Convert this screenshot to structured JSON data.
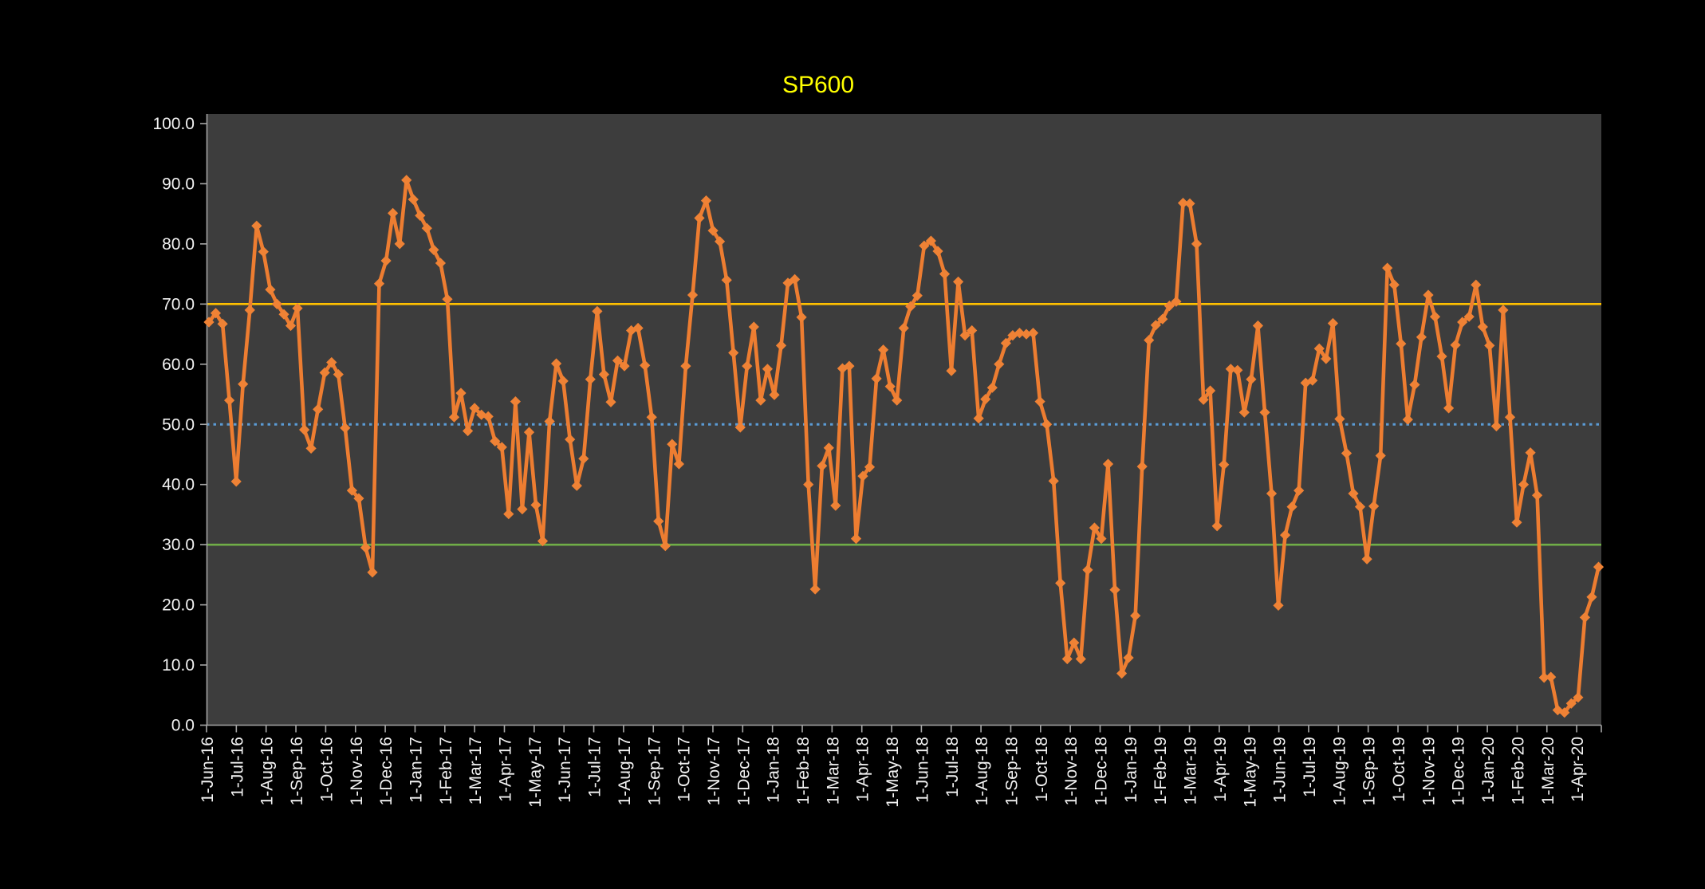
{
  "title": {
    "text": "SP600",
    "color": "#FFFF00"
  },
  "colors": {
    "page_background": "#000000",
    "plot_background": "#3D3D3D",
    "series_line": "#ED7D31",
    "marker_fill": "#EF8235",
    "axis_line": "#A6A6A6",
    "tick_mark": "#A6A6A6",
    "axis_text": "#F2F2F2",
    "ref_upper": "#FFC000",
    "ref_middle": "#5B9BD5",
    "ref_lower": "#70AD47",
    "title_text": "#FFFF00"
  },
  "chart_data": {
    "type": "line",
    "title": "SP600",
    "xlabel": "",
    "ylabel": "",
    "grid": false,
    "legend": false,
    "ylim": [
      0,
      100
    ],
    "y_axis": {
      "min": 0,
      "max": 100,
      "step": 10,
      "tick_labels": [
        "0.0",
        "10.0",
        "20.0",
        "30.0",
        "40.0",
        "50.0",
        "60.0",
        "70.0",
        "80.0",
        "90.0",
        "100.0"
      ]
    },
    "x_tick_labels": [
      "1-Jun-16",
      "1-Jul-16",
      "1-Aug-16",
      "1-Sep-16",
      "1-Oct-16",
      "1-Nov-16",
      "1-Dec-16",
      "1-Jan-17",
      "1-Feb-17",
      "1-Mar-17",
      "1-Apr-17",
      "1-May-17",
      "1-Jun-17",
      "1-Jul-17",
      "1-Aug-17",
      "1-Sep-17",
      "1-Oct-17",
      "1-Nov-17",
      "1-Dec-17",
      "1-Jan-18",
      "1-Feb-18",
      "1-Mar-18",
      "1-Apr-18",
      "1-May-18",
      "1-Jun-18",
      "1-Jul-18",
      "1-Aug-18",
      "1-Sep-18",
      "1-Oct-18",
      "1-Nov-18",
      "1-Dec-18",
      "1-Jan-19",
      "1-Feb-19",
      "1-Mar-19",
      "1-Apr-19",
      "1-May-19",
      "1-Jun-19",
      "1-Jul-19",
      "1-Aug-19",
      "1-Sep-19",
      "1-Oct-19",
      "1-Nov-19",
      "1-Dec-19",
      "1-Jan-20",
      "1-Feb-20",
      "1-Mar-20",
      "1-Apr-20"
    ],
    "reference_lines": [
      {
        "name": "overbought-line",
        "value": 70,
        "color": "#FFC000",
        "style": "solid"
      },
      {
        "name": "midpoint-line",
        "value": 50,
        "color": "#5B9BD5",
        "style": "dotted"
      },
      {
        "name": "oversold-line",
        "value": 30,
        "color": "#70AD47",
        "style": "solid"
      }
    ],
    "series": [
      {
        "name": "SP600",
        "color": "#ED7D31",
        "marker": "diamond",
        "frequency": "weekly",
        "values": [
          67.0,
          68.5,
          66.7,
          54.0,
          40.5,
          56.7,
          69.0,
          83.0,
          78.7,
          72.4,
          70.0,
          68.3,
          66.4,
          69.3,
          49.1,
          46.0,
          52.5,
          58.6,
          60.3,
          58.3,
          49.4,
          39.0,
          37.7,
          29.5,
          25.4,
          73.4,
          77.2,
          85.1,
          80.0,
          90.6,
          87.4,
          84.7,
          82.6,
          79.0,
          76.8,
          70.8,
          51.2,
          55.2,
          48.9,
          52.7,
          51.6,
          51.3,
          47.2,
          46.2,
          35.1,
          53.8,
          35.9,
          48.7,
          36.6,
          30.6,
          50.5,
          60.1,
          57.2,
          47.5,
          39.8,
          44.3,
          57.5,
          68.8,
          58.3,
          53.7,
          60.6,
          59.7,
          65.6,
          66.0,
          59.8,
          51.2,
          33.9,
          29.8,
          46.7,
          43.4,
          59.7,
          71.5,
          84.3,
          87.2,
          82.2,
          80.4,
          74.0,
          61.9,
          49.5,
          59.7,
          66.2,
          54.0,
          59.2,
          54.9,
          63.1,
          73.5,
          74.1,
          67.8,
          40.0,
          22.6,
          43.1,
          46.1,
          36.5,
          59.3,
          59.7,
          31.0,
          41.4,
          42.9,
          57.6,
          62.4,
          56.3,
          54.0,
          66.0,
          69.6,
          71.4,
          79.7,
          80.5,
          78.8,
          75.0,
          58.9,
          73.7,
          64.8,
          65.6,
          51.0,
          54.2,
          56.1,
          60.0,
          63.5,
          64.8,
          65.2,
          65.0,
          65.2,
          53.8,
          50.0,
          40.6,
          23.6,
          11.0,
          13.7,
          11.0,
          25.8,
          32.8,
          31.0,
          43.4,
          22.5,
          8.6,
          11.2,
          18.2,
          43.0,
          64.0,
          66.5,
          67.5,
          69.7,
          70.4,
          86.8,
          86.7,
          80.0,
          54.1,
          55.6,
          33.1,
          43.3,
          59.2,
          59.0,
          52.0,
          57.5,
          66.4,
          52.0,
          38.5,
          19.9,
          31.6,
          36.3,
          39.0,
          56.9,
          57.3,
          62.6,
          60.9,
          66.8,
          50.9,
          45.2,
          38.5,
          36.3,
          27.6,
          36.4,
          44.8,
          76.0,
          73.2,
          63.4,
          50.8,
          56.6,
          64.5,
          71.5,
          67.9,
          61.3,
          52.7,
          63.2,
          67.0,
          67.9,
          73.2,
          66.2,
          63.1,
          49.7,
          69.0,
          51.2,
          33.7,
          40.0,
          45.3,
          38.2,
          7.9,
          8.0,
          2.5,
          2.1,
          3.6,
          4.6,
          17.9,
          21.3,
          26.3
        ]
      }
    ]
  }
}
